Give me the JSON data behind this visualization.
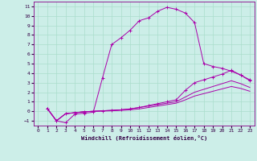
{
  "xlabel": "Windchill (Refroidissement éolien,°C)",
  "xlim": [
    -0.5,
    23.5
  ],
  "ylim": [
    -1.5,
    11.5
  ],
  "xticks": [
    0,
    1,
    2,
    3,
    4,
    5,
    6,
    7,
    8,
    9,
    10,
    11,
    12,
    13,
    14,
    15,
    16,
    17,
    18,
    19,
    20,
    21,
    22,
    23
  ],
  "yticks": [
    -1,
    0,
    1,
    2,
    3,
    4,
    5,
    6,
    7,
    8,
    9,
    10,
    11
  ],
  "bg_color": "#cceee8",
  "grid_color": "#aaddcc",
  "line_color": "#aa00aa",
  "curve1_x": [
    1,
    2,
    3,
    4,
    5,
    6,
    7,
    8,
    9,
    10,
    11,
    12,
    13,
    14,
    15,
    16,
    17,
    18,
    19,
    20,
    21,
    22,
    23
  ],
  "curve1_y": [
    0.3,
    -1.0,
    -1.2,
    -0.3,
    -0.2,
    -0.1,
    3.5,
    7.0,
    7.7,
    8.5,
    9.5,
    9.8,
    10.5,
    10.9,
    10.7,
    10.3,
    9.3,
    5.0,
    4.7,
    4.5,
    4.2,
    3.8,
    3.3
  ],
  "curve2_x": [
    1,
    2,
    3,
    4,
    5,
    6,
    7,
    8,
    9,
    10,
    11,
    12,
    13,
    14,
    15,
    16,
    17,
    18,
    19,
    20,
    21,
    22,
    23
  ],
  "curve2_y": [
    0.3,
    -1.0,
    -0.25,
    -0.15,
    -0.05,
    0.0,
    0.05,
    0.1,
    0.15,
    0.25,
    0.4,
    0.6,
    0.8,
    1.0,
    1.2,
    2.2,
    3.0,
    3.3,
    3.6,
    3.9,
    4.3,
    3.8,
    3.2
  ],
  "curve3_x": [
    1,
    2,
    3,
    4,
    5,
    6,
    7,
    8,
    9,
    10,
    11,
    12,
    13,
    14,
    15,
    16,
    17,
    18,
    19,
    20,
    21,
    22,
    23
  ],
  "curve3_y": [
    0.3,
    -1.0,
    -0.25,
    -0.15,
    -0.05,
    0.0,
    0.05,
    0.1,
    0.15,
    0.25,
    0.4,
    0.55,
    0.7,
    0.85,
    1.0,
    1.5,
    2.0,
    2.3,
    2.6,
    2.9,
    3.2,
    2.9,
    2.5
  ],
  "curve4_x": [
    1,
    2,
    3,
    4,
    5,
    6,
    7,
    8,
    9,
    10,
    11,
    12,
    13,
    14,
    15,
    16,
    17,
    18,
    19,
    20,
    21,
    22,
    23
  ],
  "curve4_y": [
    0.3,
    -1.0,
    -0.25,
    -0.15,
    -0.05,
    0.0,
    0.02,
    0.05,
    0.1,
    0.15,
    0.25,
    0.4,
    0.55,
    0.7,
    0.85,
    1.2,
    1.6,
    1.85,
    2.1,
    2.35,
    2.6,
    2.4,
    2.1
  ]
}
